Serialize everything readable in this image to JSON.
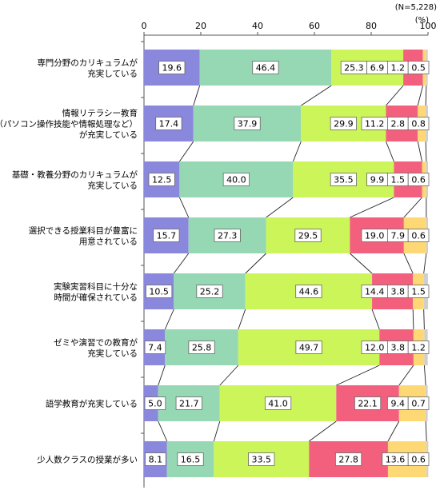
{
  "sample_note": "(N=5,228)",
  "unit": "(%)",
  "chart_data": {
    "type": "bar",
    "orientation": "horizontal",
    "stacked": true,
    "xlim": [
      0,
      100
    ],
    "xticks": [
      0,
      20,
      40,
      60,
      80,
      100
    ],
    "grid": false,
    "legend": "none",
    "categories": [
      [
        "専門分野のカリキュラムが",
        "充実している"
      ],
      [
        "情報リテラシー教育",
        "（パソコン操作技能や情報処理など）",
        "が充実している"
      ],
      [
        "基礎・教養分野のカリキュラムが",
        "充実している"
      ],
      [
        "選択できる授業科目が豊富に",
        "用意されている"
      ],
      [
        "実験実習科目に十分な",
        "時間が確保されている"
      ],
      [
        "ゼミや演習での教育が",
        "充実している"
      ],
      [
        "語学教育が充実している"
      ],
      [
        "少人数クラスの授業が多い"
      ]
    ],
    "series": [
      {
        "color": "#8a88dc",
        "values": [
          19.6,
          17.4,
          12.5,
          15.7,
          10.5,
          7.4,
          5.0,
          8.1
        ]
      },
      {
        "color": "#96d8b4",
        "values": [
          46.4,
          37.9,
          40.0,
          27.3,
          25.2,
          25.8,
          21.7,
          16.5
        ]
      },
      {
        "color": "#ccf55a",
        "values": [
          25.3,
          29.9,
          35.5,
          29.5,
          44.6,
          49.7,
          41.0,
          33.5
        ]
      },
      {
        "color": "#f2607e",
        "values": [
          6.9,
          11.2,
          9.9,
          19.0,
          14.4,
          12.0,
          22.1,
          27.8
        ]
      },
      {
        "color": "#fdd874",
        "values": [
          1.2,
          2.8,
          1.5,
          7.9,
          3.8,
          3.8,
          9.4,
          13.6
        ]
      },
      {
        "color": "#cfcfcf",
        "values": [
          0.5,
          0.8,
          0.6,
          0.6,
          1.5,
          1.2,
          0.7,
          0.6
        ]
      }
    ]
  }
}
